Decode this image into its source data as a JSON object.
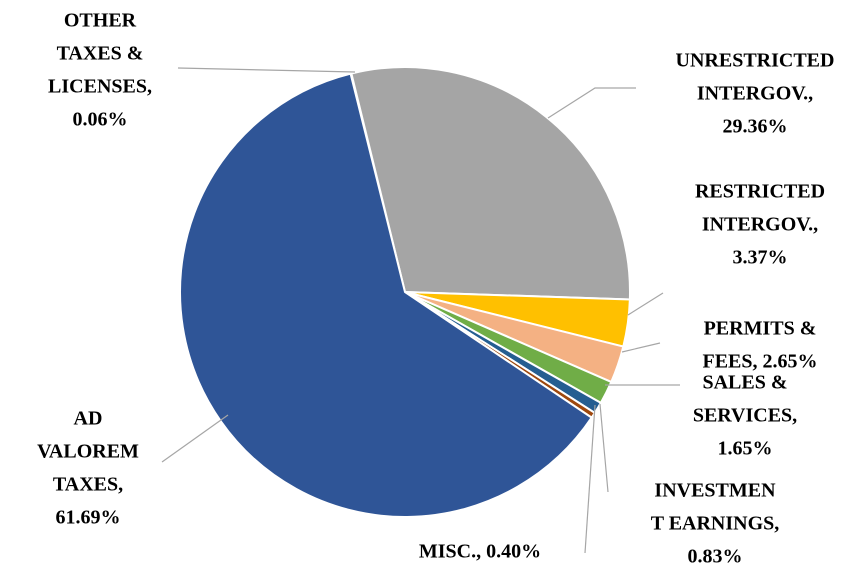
{
  "chart_data": {
    "type": "pie",
    "categories": [
      "OTHER TAXES & LICENSES",
      "UNRESTRICTED INTERGOV.",
      "RESTRICTED INTERGOV.",
      "PERMITS & FEES",
      "SALES & SERVICES",
      "INVESTMENT EARNINGS",
      "MISC.",
      "AD VALOREM TAXES"
    ],
    "values": [
      0.06,
      29.36,
      3.37,
      2.65,
      1.65,
      0.83,
      0.4,
      61.69
    ],
    "colors": [
      "#4472c4",
      "#a5a5a5",
      "#ffc000",
      "#f4b183",
      "#70ad47",
      "#255e91",
      "#9e480e",
      "#2f5597"
    ],
    "labels": [
      [
        "OTHER",
        "TAXES &",
        "LICENSES,",
        "0.06%"
      ],
      [
        "UNRESTRICTED",
        "INTERGOV.,",
        "29.36%"
      ],
      [
        "RESTRICTED",
        "INTERGOV.,",
        "3.37%"
      ],
      [
        "PERMITS &",
        "FEES, 2.65%"
      ],
      [
        "SALES &",
        "SERVICES,",
        "1.65%"
      ],
      [
        "INVESTMEN",
        "T EARNINGS,",
        "0.83%"
      ],
      [
        "MISC., 0.40%"
      ],
      [
        "AD",
        "VALOREM",
        "TAXES,",
        "61.69%"
      ]
    ]
  }
}
